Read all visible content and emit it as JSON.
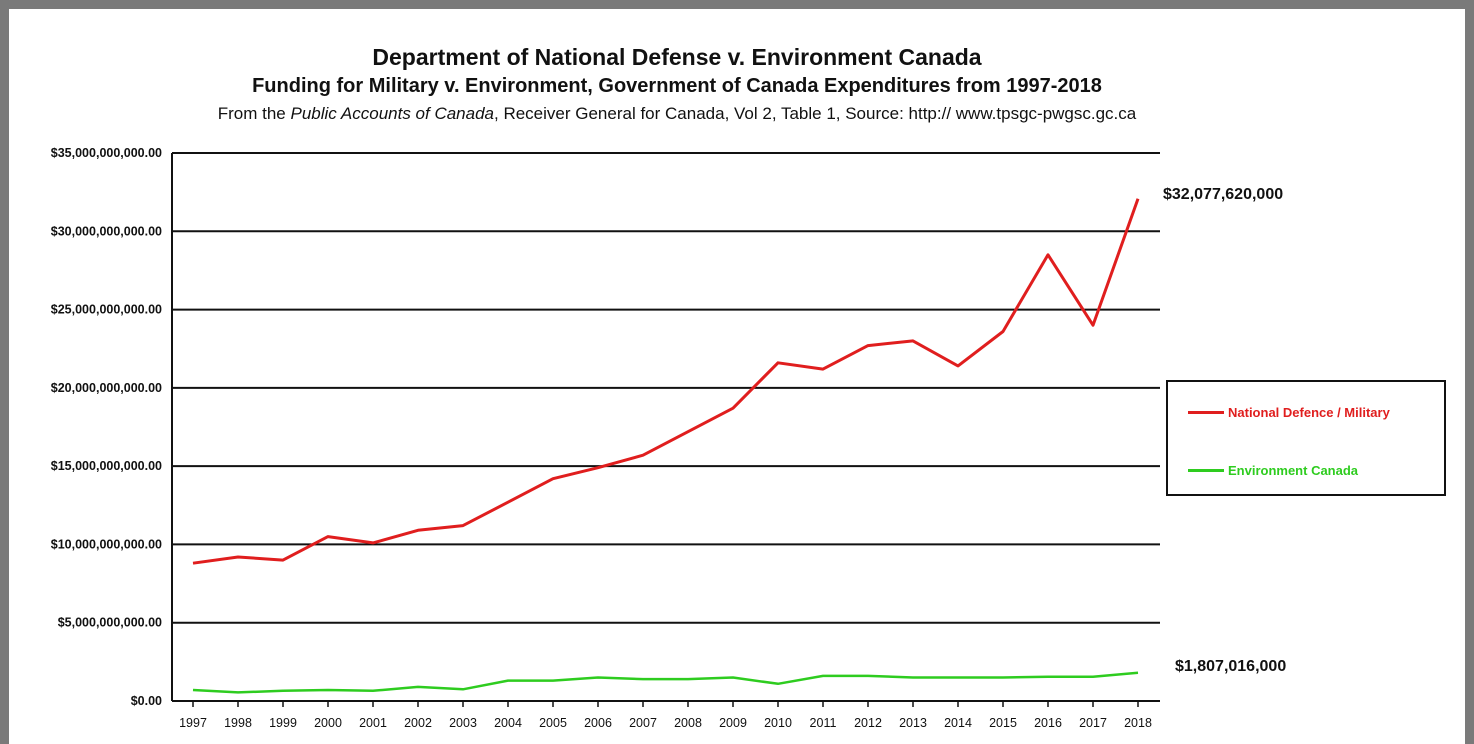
{
  "chart_data": {
    "type": "line",
    "title": "Department of National Defense v. Environment Canada",
    "subtitle": "Funding for Military v. Environment, Government of Canada Expenditures from 1997-2018",
    "source_prefix": "From the ",
    "source_italic": "Public Accounts of Canada",
    "source_suffix": ", Receiver General for Canada, Vol 2, Table 1, Source: http:// www.tpsgc-pwgsc.gc.ca",
    "x": [
      1997,
      1998,
      1999,
      2000,
      2001,
      2002,
      2003,
      2004,
      2005,
      2006,
      2007,
      2008,
      2009,
      2010,
      2011,
      2012,
      2013,
      2014,
      2015,
      2016,
      2017,
      2018
    ],
    "x_tick_labels": [
      "1997",
      "1998",
      "1999",
      "2000",
      "2001",
      "2002",
      "2003",
      "2004",
      "2005",
      "2006",
      "2007",
      "2008",
      "2009",
      "2010",
      "2011",
      "2012",
      "2013",
      "2014",
      "2015",
      "2016",
      "2017",
      "2018"
    ],
    "ylim": [
      0,
      35000000000
    ],
    "y_ticks": [
      0,
      5000000000,
      10000000000,
      15000000000,
      20000000000,
      25000000000,
      30000000000,
      35000000000
    ],
    "y_tick_labels": [
      "$0.00",
      "$5,000,000,000.00",
      "$10,000,000,000.00",
      "$15,000,000,000.00",
      "$20,000,000,000.00",
      "$25,000,000,000.00",
      "$30,000,000,000.00",
      "$35,000,000,000.00"
    ],
    "grid": "horizontal",
    "legend_position": "right",
    "series": [
      {
        "name": "National Defence / Military",
        "color": "#e01e1e",
        "values": [
          8800000000,
          9200000000,
          9000000000,
          10500000000,
          10100000000,
          10900000000,
          11200000000,
          12700000000,
          14200000000,
          14900000000,
          15700000000,
          17200000000,
          18700000000,
          21600000000,
          21200000000,
          22700000000,
          23000000000,
          21400000000,
          23600000000,
          28500000000,
          24000000000,
          32077620000
        ],
        "end_label": "$32,077,620,000"
      },
      {
        "name": "Environment Canada",
        "color": "#2ecc1f",
        "values": [
          700000000,
          550000000,
          650000000,
          700000000,
          650000000,
          900000000,
          750000000,
          1300000000,
          1300000000,
          1500000000,
          1400000000,
          1400000000,
          1500000000,
          1100000000,
          1600000000,
          1600000000,
          1500000000,
          1500000000,
          1500000000,
          1550000000,
          1550000000,
          1807016000
        ],
        "end_label": "$1,807,016,000"
      }
    ]
  }
}
